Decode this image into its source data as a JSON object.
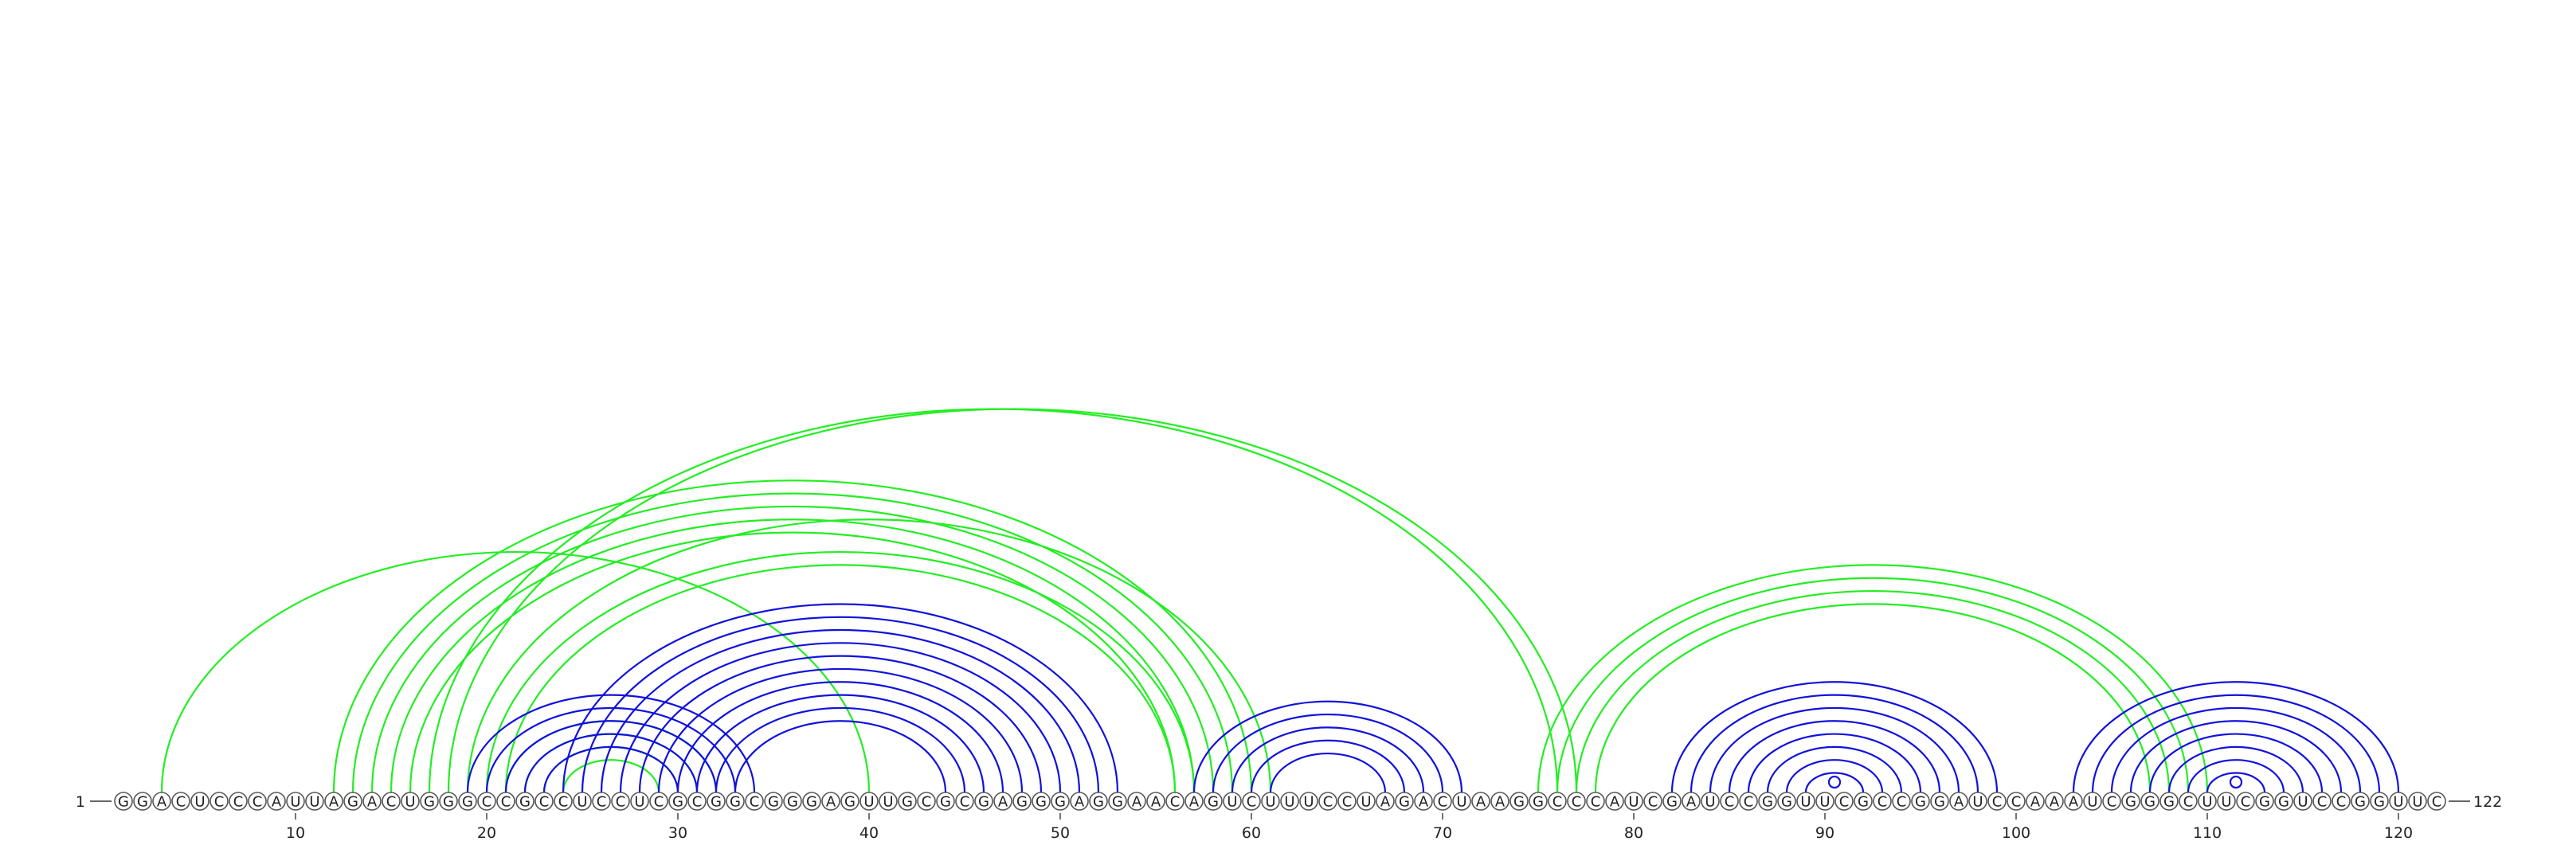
{
  "sequence": "GGACUCCCAUUAGACUGGGCCGCCUCCUCGCGGCGGGAGUUGCGCGAGGGAGGAACAGUCUUUCCUAGACUAAGGCCCAUCGAUCCGGUUCGCCGGAUCCAAAUCGGGCUUCGGUCCGGUUC",
  "start_label": "1",
  "end_label": "122",
  "ticks": [
    "10",
    "20",
    "30",
    "40",
    "50",
    "60",
    "70",
    "80",
    "90",
    "100",
    "110",
    "120"
  ],
  "colors": {
    "green": "#22ee22",
    "blue": "#1111dd"
  },
  "arc_groups": [
    {
      "color": "green",
      "pairs": [
        [
          3,
          40
        ]
      ]
    },
    {
      "color": "green",
      "pairs": [
        [
          12,
          60
        ],
        [
          13,
          59
        ],
        [
          14,
          58
        ],
        [
          15,
          57
        ],
        [
          16,
          56
        ]
      ]
    },
    {
      "color": "green",
      "pairs": [
        [
          17,
          76
        ],
        [
          18,
          77
        ]
      ]
    },
    {
      "color": "green",
      "pairs": [
        [
          19,
          61
        ],
        [
          20,
          57
        ],
        [
          21,
          56
        ]
      ]
    },
    {
      "color": "green",
      "pairs": [
        [
          21,
          32
        ],
        [
          22,
          31
        ],
        [
          23,
          30
        ],
        [
          24,
          29
        ]
      ]
    },
    {
      "color": "green",
      "pairs": [
        [
          75,
          110
        ],
        [
          76,
          109
        ],
        [
          77,
          108
        ],
        [
          78,
          107
        ]
      ]
    },
    {
      "color": "blue",
      "pairs": [
        [
          19,
          34
        ],
        [
          20,
          33
        ],
        [
          21,
          32
        ],
        [
          22,
          31
        ],
        [
          23,
          30
        ]
      ]
    },
    {
      "color": "blue",
      "pairs": [
        [
          24,
          53
        ],
        [
          25,
          52
        ],
        [
          26,
          51
        ],
        [
          27,
          50
        ],
        [
          28,
          49
        ],
        [
          29,
          48
        ],
        [
          30,
          47
        ],
        [
          31,
          46
        ],
        [
          32,
          45
        ],
        [
          33,
          44
        ]
      ]
    },
    {
      "color": "blue",
      "pairs": [
        [
          57,
          71
        ],
        [
          58,
          70
        ],
        [
          59,
          69
        ],
        [
          60,
          68
        ],
        [
          61,
          67
        ]
      ]
    },
    {
      "color": "blue",
      "pairs": [
        [
          82,
          99
        ],
        [
          83,
          98
        ],
        [
          84,
          97
        ],
        [
          85,
          96
        ],
        [
          86,
          95
        ],
        [
          87,
          94
        ],
        [
          88,
          93
        ],
        [
          89,
          92
        ]
      ]
    },
    {
      "color": "blue",
      "pairs": [
        [
          103,
          120
        ],
        [
          104,
          119
        ],
        [
          105,
          118
        ],
        [
          106,
          117
        ],
        [
          107,
          116
        ],
        [
          108,
          115
        ],
        [
          109,
          114
        ],
        [
          110,
          113
        ]
      ]
    }
  ],
  "markers": [
    {
      "color": "blue",
      "between": [
        90,
        91
      ]
    },
    {
      "color": "blue",
      "between": [
        111,
        112
      ]
    }
  ]
}
